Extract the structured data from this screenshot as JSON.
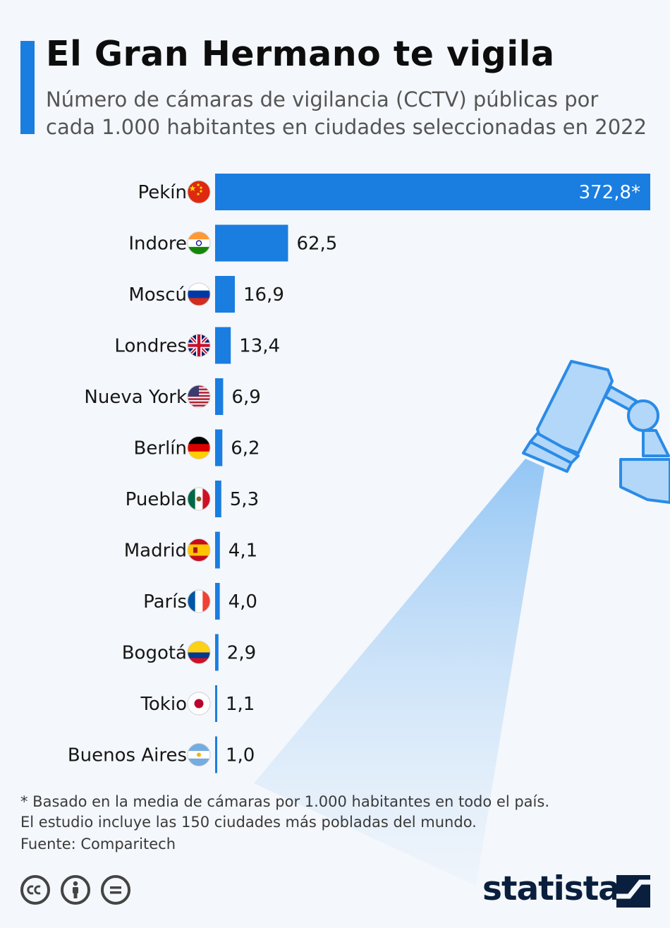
{
  "header": {
    "title": "El Gran Hermano te vigila",
    "subtitle": "Número de cámaras de vigilancia (CCTV) públicas por cada 1.000 habitantes en ciudades seleccionadas en 2022"
  },
  "chart_data": {
    "type": "bar",
    "orientation": "horizontal",
    "categories": [
      "Pekín",
      "Indore",
      "Moscú",
      "Londres",
      "Nueva York",
      "Berlín",
      "Puebla",
      "Madrid",
      "París",
      "Bogotá",
      "Tokio",
      "Buenos Aires"
    ],
    "values": [
      372.8,
      62.5,
      16.9,
      13.4,
      6.9,
      6.2,
      5.3,
      4.1,
      4.0,
      2.9,
      1.1,
      1.0
    ],
    "value_labels": [
      "372,8*",
      "62,5",
      "16,9",
      "13,4",
      "6,9",
      "6,2",
      "5,3",
      "4,1",
      "4,0",
      "2,9",
      "1,1",
      "1,0"
    ],
    "flags": [
      "china",
      "india",
      "russia",
      "uk",
      "usa",
      "germany",
      "mexico",
      "spain",
      "france",
      "colombia",
      "japan",
      "argentina"
    ],
    "bar_color": "#1a7de0",
    "xlim": [
      0,
      372.8
    ],
    "grid": false,
    "legend": "none"
  },
  "footer": {
    "footnote_line1": "* Basado en la media de cámaras por 1.000 habitantes en todo el país.",
    "footnote_line2": "El estudio incluye las 150 ciudades más pobladas del mundo.",
    "source": "Fuente: Comparitech",
    "license_icons": [
      "cc-icon",
      "by-icon",
      "nd-icon"
    ],
    "brand": "statista"
  },
  "colors": {
    "accent": "#1a7de0",
    "background": "#f4f7fb",
    "camera_light": "#a9d1f7"
  }
}
